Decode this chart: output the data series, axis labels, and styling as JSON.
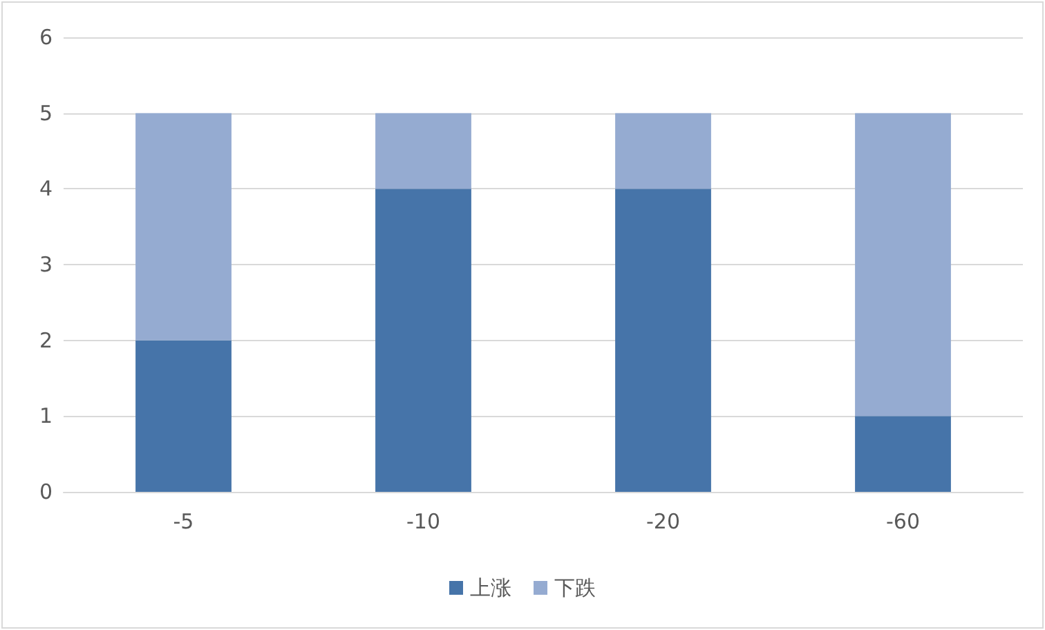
{
  "chart_data": {
    "type": "bar",
    "stacked": true,
    "categories": [
      "-5",
      "-10",
      "-20",
      "-60"
    ],
    "series": [
      {
        "name": "上涨",
        "color": "#4674a9",
        "values": [
          2,
          4,
          4,
          1
        ]
      },
      {
        "name": "下跌",
        "color": "#95abd1",
        "values": [
          3,
          1,
          1,
          4
        ]
      }
    ],
    "ylim": [
      0,
      6
    ],
    "yticks": [
      0,
      1,
      2,
      3,
      4,
      5,
      6
    ],
    "grid": "y",
    "legend": "bottom"
  }
}
